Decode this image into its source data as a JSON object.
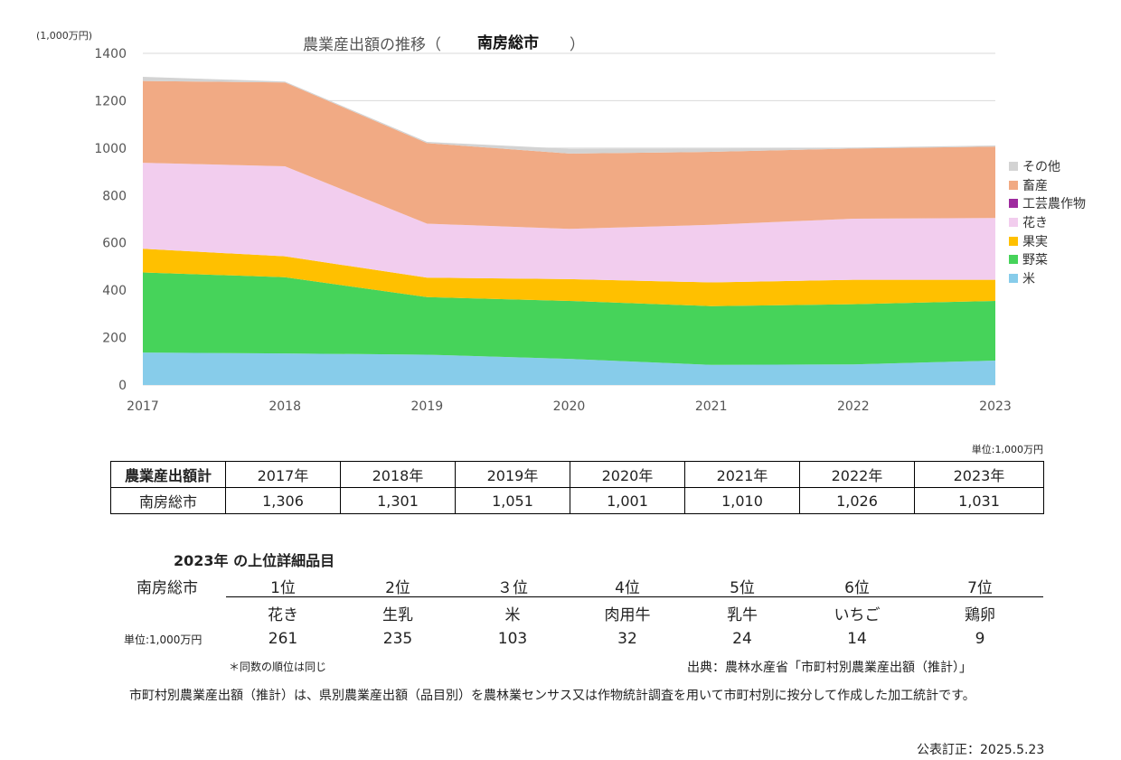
{
  "chart_data": {
    "type": "area",
    "stacked": true,
    "title": "農業産出額の推移（",
    "title_city": "南房総市",
    "title_close": "）",
    "ylabel": "(1,000万円)",
    "xlabel": "",
    "ylim": [
      0,
      1400
    ],
    "yticks": [
      0,
      200,
      400,
      600,
      800,
      1000,
      1200,
      1400
    ],
    "x": [
      "2017",
      "2018",
      "2019",
      "2020",
      "2021",
      "2022",
      "2023"
    ],
    "grid": true,
    "legend_position": "right",
    "series": [
      {
        "name": "米",
        "color": "#87CCEA",
        "values": [
          137,
          133,
          128,
          110,
          85,
          87,
          103
        ]
      },
      {
        "name": "野菜",
        "color": "#46D35A",
        "values": [
          338,
          322,
          243,
          245,
          248,
          254,
          252
        ]
      },
      {
        "name": "果実",
        "color": "#FFC000",
        "values": [
          100,
          88,
          82,
          92,
          100,
          103,
          89
        ]
      },
      {
        "name": "花き",
        "color": "#F2CDEE",
        "values": [
          363,
          380,
          228,
          212,
          243,
          258,
          261
        ]
      },
      {
        "name": "工芸農作物",
        "color": "#9E2A9E",
        "values": [
          0,
          0,
          0,
          0,
          0,
          0,
          0
        ]
      },
      {
        "name": "畜産",
        "color": "#F1AA84",
        "values": [
          345,
          354,
          340,
          318,
          308,
          296,
          301
        ]
      },
      {
        "name": "その他",
        "color": "#D3D3D3",
        "values": [
          18,
          4,
          5,
          20,
          14,
          4,
          5
        ]
      }
    ]
  },
  "legend_order": [
    "その他",
    "畜産",
    "工芸農作物",
    "花き",
    "果実",
    "野菜",
    "米"
  ],
  "summary": {
    "unit": "単位:1,000万円",
    "header": "農業産出額計",
    "years": [
      "2017年",
      "2018年",
      "2019年",
      "2020年",
      "2021年",
      "2022年",
      "2023年"
    ],
    "city": "南房総市",
    "values": [
      "1,306",
      "1,301",
      "1,051",
      "1,001",
      "1,010",
      "1,026",
      "1,031"
    ]
  },
  "ranking": {
    "title": "2023年 の上位詳細品目",
    "city": "南房総市",
    "unit": "単位:1,000万円",
    "ranks": [
      "1位",
      "2位",
      "３位",
      "4位",
      "5位",
      "6位",
      "7位"
    ],
    "items": [
      "花き",
      "生乳",
      "米",
      "肉用牛",
      "乳牛",
      "いちご",
      "鶏卵"
    ],
    "values": [
      "261",
      "235",
      "103",
      "32",
      "24",
      "14",
      "9"
    ],
    "note": "＊同数の順位は同じ",
    "source": "出典：農林水産省「市町村別農業産出額（推計）」"
  },
  "footnote": "市町村別農業産出額（推計）は、県別農業産出額（品目別）を農林業センサス又は作物統計調査を用いて市町村別に按分して作成した加工統計です。",
  "published": "公表訂正：2025.5.23"
}
